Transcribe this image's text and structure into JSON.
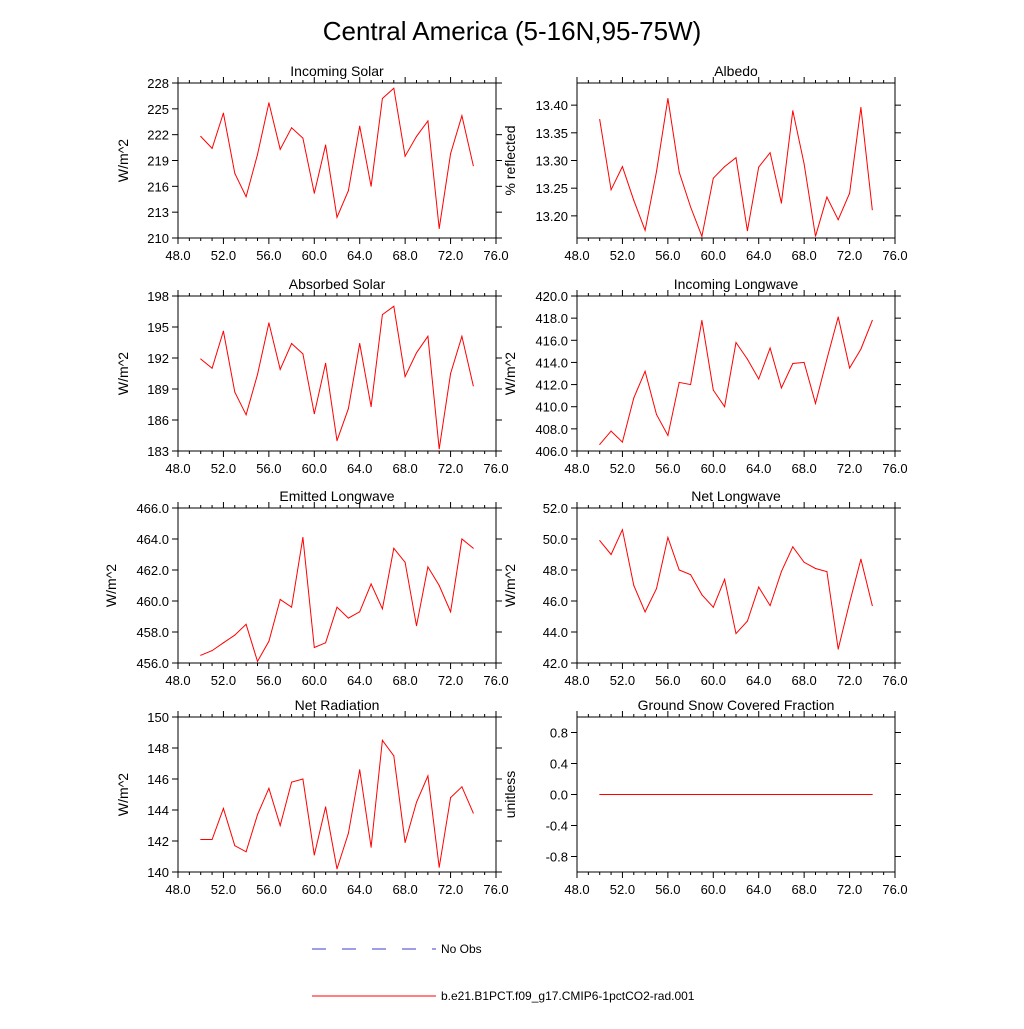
{
  "figure": {
    "title": "Central America (5-16N,95-75W)"
  },
  "legend": {
    "entries": [
      {
        "label": "No Obs",
        "color": "#3b3bd0",
        "style": "dashed"
      },
      {
        "label": "b.e21.B1PCT.f09_g17.CMIP6-1pctCO2-rad.001",
        "color": "#ff0000",
        "style": "solid"
      }
    ]
  },
  "chart_data": [
    {
      "type": "line",
      "title": "Incoming Solar",
      "ylabel": "W/m^2",
      "xlim": [
        48,
        76
      ],
      "ylim": [
        210,
        228
      ],
      "xticks": [
        48,
        52,
        56,
        60,
        64,
        68,
        72,
        76
      ],
      "xtick_labels": [
        "48.0",
        "52.0",
        "56.0",
        "60.0",
        "64.0",
        "68.0",
        "72.0",
        "76.0"
      ],
      "yticks": [
        210,
        213,
        216,
        219,
        222,
        225,
        228
      ],
      "ytick_labels": [
        "210",
        "213",
        "216",
        "219",
        "222",
        "225",
        "228"
      ],
      "series": [
        {
          "name": "b.e21.B1PCT.f09_g17.CMIP6-1pctCO2-rad.001",
          "color": "#ff0000",
          "x": [
            50,
            51,
            52,
            53,
            54,
            55,
            56,
            57,
            58,
            59,
            60,
            61,
            62,
            63,
            64,
            65,
            66,
            67,
            68,
            69,
            70,
            71,
            72,
            73,
            74
          ],
          "y": [
            221.8,
            220.4,
            224.5,
            217.5,
            214.8,
            219.7,
            225.7,
            220.3,
            222.8,
            221.6,
            215.2,
            220.8,
            212.4,
            215.5,
            223.0,
            216.0,
            226.2,
            227.4,
            219.5,
            221.8,
            223.6,
            211.1,
            219.8,
            224.2,
            218.4
          ]
        }
      ]
    },
    {
      "type": "line",
      "title": "Albedo",
      "ylabel": "% reflected",
      "xlim": [
        48,
        76
      ],
      "ylim": [
        13.16,
        13.44
      ],
      "xticks": [
        48,
        52,
        56,
        60,
        64,
        68,
        72,
        76
      ],
      "xtick_labels": [
        "48.0",
        "52.0",
        "56.0",
        "60.0",
        "64.0",
        "68.0",
        "72.0",
        "76.0"
      ],
      "yticks": [
        13.2,
        13.25,
        13.3,
        13.35,
        13.4
      ],
      "ytick_labels": [
        "13.20",
        "13.25",
        "13.30",
        "13.35",
        "13.40"
      ],
      "series": [
        {
          "name": "b.e21.B1PCT.f09_g17.CMIP6-1pctCO2-rad.001",
          "color": "#ff0000",
          "x": [
            50,
            51,
            52,
            53,
            54,
            55,
            56,
            57,
            58,
            59,
            60,
            61,
            62,
            63,
            64,
            65,
            66,
            67,
            68,
            69,
            70,
            71,
            72,
            73,
            74
          ],
          "y": [
            13.374,
            13.247,
            13.289,
            13.228,
            13.174,
            13.28,
            13.412,
            13.279,
            13.216,
            13.163,
            13.268,
            13.289,
            13.305,
            13.173,
            13.288,
            13.314,
            13.223,
            13.39,
            13.294,
            13.163,
            13.234,
            13.193,
            13.241,
            13.396,
            13.211
          ]
        }
      ]
    },
    {
      "type": "line",
      "title": "Absorbed Solar",
      "ylabel": "W/m^2",
      "xlim": [
        48,
        76
      ],
      "ylim": [
        183,
        198
      ],
      "xticks": [
        48,
        52,
        56,
        60,
        64,
        68,
        72,
        76
      ],
      "xtick_labels": [
        "48.0",
        "52.0",
        "56.0",
        "60.0",
        "64.0",
        "68.0",
        "72.0",
        "76.0"
      ],
      "yticks": [
        183,
        186,
        189,
        192,
        195,
        198
      ],
      "ytick_labels": [
        "183",
        "186",
        "189",
        "192",
        "195",
        "198"
      ],
      "series": [
        {
          "name": "b.e21.B1PCT.f09_g17.CMIP6-1pctCO2-rad.001",
          "color": "#ff0000",
          "x": [
            50,
            51,
            52,
            53,
            54,
            55,
            56,
            57,
            58,
            59,
            60,
            61,
            62,
            63,
            64,
            65,
            66,
            67,
            68,
            69,
            70,
            71,
            72,
            73,
            74
          ],
          "y": [
            191.9,
            191.0,
            194.6,
            188.7,
            186.5,
            190.4,
            195.4,
            190.9,
            193.4,
            192.4,
            186.6,
            191.5,
            184.0,
            187.1,
            193.4,
            187.3,
            196.2,
            197.0,
            190.2,
            192.5,
            194.1,
            183.2,
            190.5,
            194.1,
            189.3
          ]
        }
      ]
    },
    {
      "type": "line",
      "title": "Incoming Longwave",
      "ylabel": "W/m^2",
      "xlim": [
        48,
        76
      ],
      "ylim": [
        406,
        420
      ],
      "xticks": [
        48,
        52,
        56,
        60,
        64,
        68,
        72,
        76
      ],
      "xtick_labels": [
        "48.0",
        "52.0",
        "56.0",
        "60.0",
        "64.0",
        "68.0",
        "72.0",
        "76.0"
      ],
      "yticks": [
        406,
        408,
        410,
        412,
        414,
        416,
        418,
        420
      ],
      "ytick_labels": [
        "406.0",
        "408.0",
        "410.0",
        "412.0",
        "414.0",
        "416.0",
        "418.0",
        "420.0"
      ],
      "series": [
        {
          "name": "b.e21.B1PCT.f09_g17.CMIP6-1pctCO2-rad.001",
          "color": "#ff0000",
          "x": [
            50,
            51,
            52,
            53,
            54,
            55,
            56,
            57,
            58,
            59,
            60,
            61,
            62,
            63,
            64,
            65,
            66,
            67,
            68,
            69,
            70,
            71,
            72,
            73,
            74
          ],
          "y": [
            406.6,
            407.8,
            406.8,
            410.8,
            413.2,
            409.3,
            407.4,
            412.2,
            412.0,
            417.8,
            411.5,
            410.0,
            415.8,
            414.3,
            412.5,
            415.3,
            411.7,
            413.9,
            414.0,
            410.3,
            414.3,
            418.1,
            413.5,
            415.2,
            417.8
          ]
        }
      ]
    },
    {
      "type": "line",
      "title": "Emitted Longwave",
      "ylabel": "W/m^2",
      "xlim": [
        48,
        76
      ],
      "ylim": [
        456,
        466
      ],
      "xticks": [
        48,
        52,
        56,
        60,
        64,
        68,
        72,
        76
      ],
      "xtick_labels": [
        "48.0",
        "52.0",
        "56.0",
        "60.0",
        "64.0",
        "68.0",
        "72.0",
        "76.0"
      ],
      "yticks": [
        456,
        458,
        460,
        462,
        464,
        466
      ],
      "ytick_labels": [
        "456.0",
        "458.0",
        "460.0",
        "462.0",
        "464.0",
        "466.0"
      ],
      "series": [
        {
          "name": "b.e21.B1PCT.f09_g17.CMIP6-1pctCO2-rad.001",
          "color": "#ff0000",
          "x": [
            50,
            51,
            52,
            53,
            54,
            55,
            56,
            57,
            58,
            59,
            60,
            61,
            62,
            63,
            64,
            65,
            66,
            67,
            68,
            69,
            70,
            71,
            72,
            73,
            74
          ],
          "y": [
            456.5,
            456.8,
            457.3,
            457.8,
            458.5,
            456.1,
            457.4,
            460.1,
            459.6,
            464.1,
            457.0,
            457.3,
            459.6,
            458.9,
            459.3,
            461.1,
            459.5,
            463.4,
            462.5,
            458.4,
            462.2,
            461.0,
            459.3,
            464.0,
            463.4
          ]
        }
      ]
    },
    {
      "type": "line",
      "title": "Net Longwave",
      "ylabel": "W/m^2",
      "xlim": [
        48,
        76
      ],
      "ylim": [
        42,
        52
      ],
      "xticks": [
        48,
        52,
        56,
        60,
        64,
        68,
        72,
        76
      ],
      "xtick_labels": [
        "48.0",
        "52.0",
        "56.0",
        "60.0",
        "64.0",
        "68.0",
        "72.0",
        "76.0"
      ],
      "yticks": [
        42,
        44,
        46,
        48,
        50,
        52
      ],
      "ytick_labels": [
        "42.0",
        "44.0",
        "46.0",
        "48.0",
        "50.0",
        "52.0"
      ],
      "series": [
        {
          "name": "b.e21.B1PCT.f09_g17.CMIP6-1pctCO2-rad.001",
          "color": "#ff0000",
          "x": [
            50,
            51,
            52,
            53,
            54,
            55,
            56,
            57,
            58,
            59,
            60,
            61,
            62,
            63,
            64,
            65,
            66,
            67,
            68,
            69,
            70,
            71,
            72,
            73,
            74
          ],
          "y": [
            49.9,
            49.0,
            50.6,
            47.0,
            45.3,
            46.8,
            50.1,
            48.0,
            47.7,
            46.4,
            45.6,
            47.4,
            43.9,
            44.7,
            46.9,
            45.7,
            47.9,
            49.5,
            48.5,
            48.1,
            47.9,
            42.9,
            45.9,
            48.7,
            45.7
          ]
        }
      ]
    },
    {
      "type": "line",
      "title": "Net Radiation",
      "ylabel": "W/m^2",
      "xlim": [
        48,
        76
      ],
      "ylim": [
        140,
        150
      ],
      "xticks": [
        48,
        52,
        56,
        60,
        64,
        68,
        72,
        76
      ],
      "xtick_labels": [
        "48.0",
        "52.0",
        "56.0",
        "60.0",
        "64.0",
        "68.0",
        "72.0",
        "76.0"
      ],
      "yticks": [
        140,
        142,
        144,
        146,
        148,
        150
      ],
      "ytick_labels": [
        "140",
        "142",
        "144",
        "146",
        "148",
        "150"
      ],
      "series": [
        {
          "name": "b.e21.B1PCT.f09_g17.CMIP6-1pctCO2-rad.001",
          "color": "#ff0000",
          "x": [
            50,
            51,
            52,
            53,
            54,
            55,
            56,
            57,
            58,
            59,
            60,
            61,
            62,
            63,
            64,
            65,
            66,
            67,
            68,
            69,
            70,
            71,
            72,
            73,
            74
          ],
          "y": [
            142.1,
            142.1,
            144.1,
            141.7,
            141.3,
            143.7,
            145.4,
            143.0,
            145.8,
            146.0,
            141.1,
            144.2,
            140.2,
            142.5,
            146.6,
            141.6,
            148.5,
            147.5,
            141.9,
            144.5,
            146.2,
            140.3,
            144.8,
            145.5,
            143.8
          ]
        }
      ]
    },
    {
      "type": "line",
      "title": "Ground Snow Covered Fraction",
      "ylabel": "unitless",
      "xlim": [
        48,
        76
      ],
      "ylim": [
        -1.0,
        1.0
      ],
      "xticks": [
        48,
        52,
        56,
        60,
        64,
        68,
        72,
        76
      ],
      "xtick_labels": [
        "48.0",
        "52.0",
        "56.0",
        "60.0",
        "64.0",
        "68.0",
        "72.0",
        "76.0"
      ],
      "yticks": [
        -0.8,
        -0.4,
        0.0,
        0.4,
        0.8
      ],
      "ytick_labels": [
        "-0.8",
        "-0.4",
        "0.0",
        "0.4",
        "0.8"
      ],
      "series": [
        {
          "name": "b.e21.B1PCT.f09_g17.CMIP6-1pctCO2-rad.001",
          "color": "#ff0000",
          "x": [
            50,
            51,
            52,
            53,
            54,
            55,
            56,
            57,
            58,
            59,
            60,
            61,
            62,
            63,
            64,
            65,
            66,
            67,
            68,
            69,
            70,
            71,
            72,
            73,
            74
          ],
          "y": [
            0,
            0,
            0,
            0,
            0,
            0,
            0,
            0,
            0,
            0,
            0,
            0,
            0,
            0,
            0,
            0,
            0,
            0,
            0,
            0,
            0,
            0,
            0,
            0,
            0
          ]
        }
      ]
    }
  ]
}
